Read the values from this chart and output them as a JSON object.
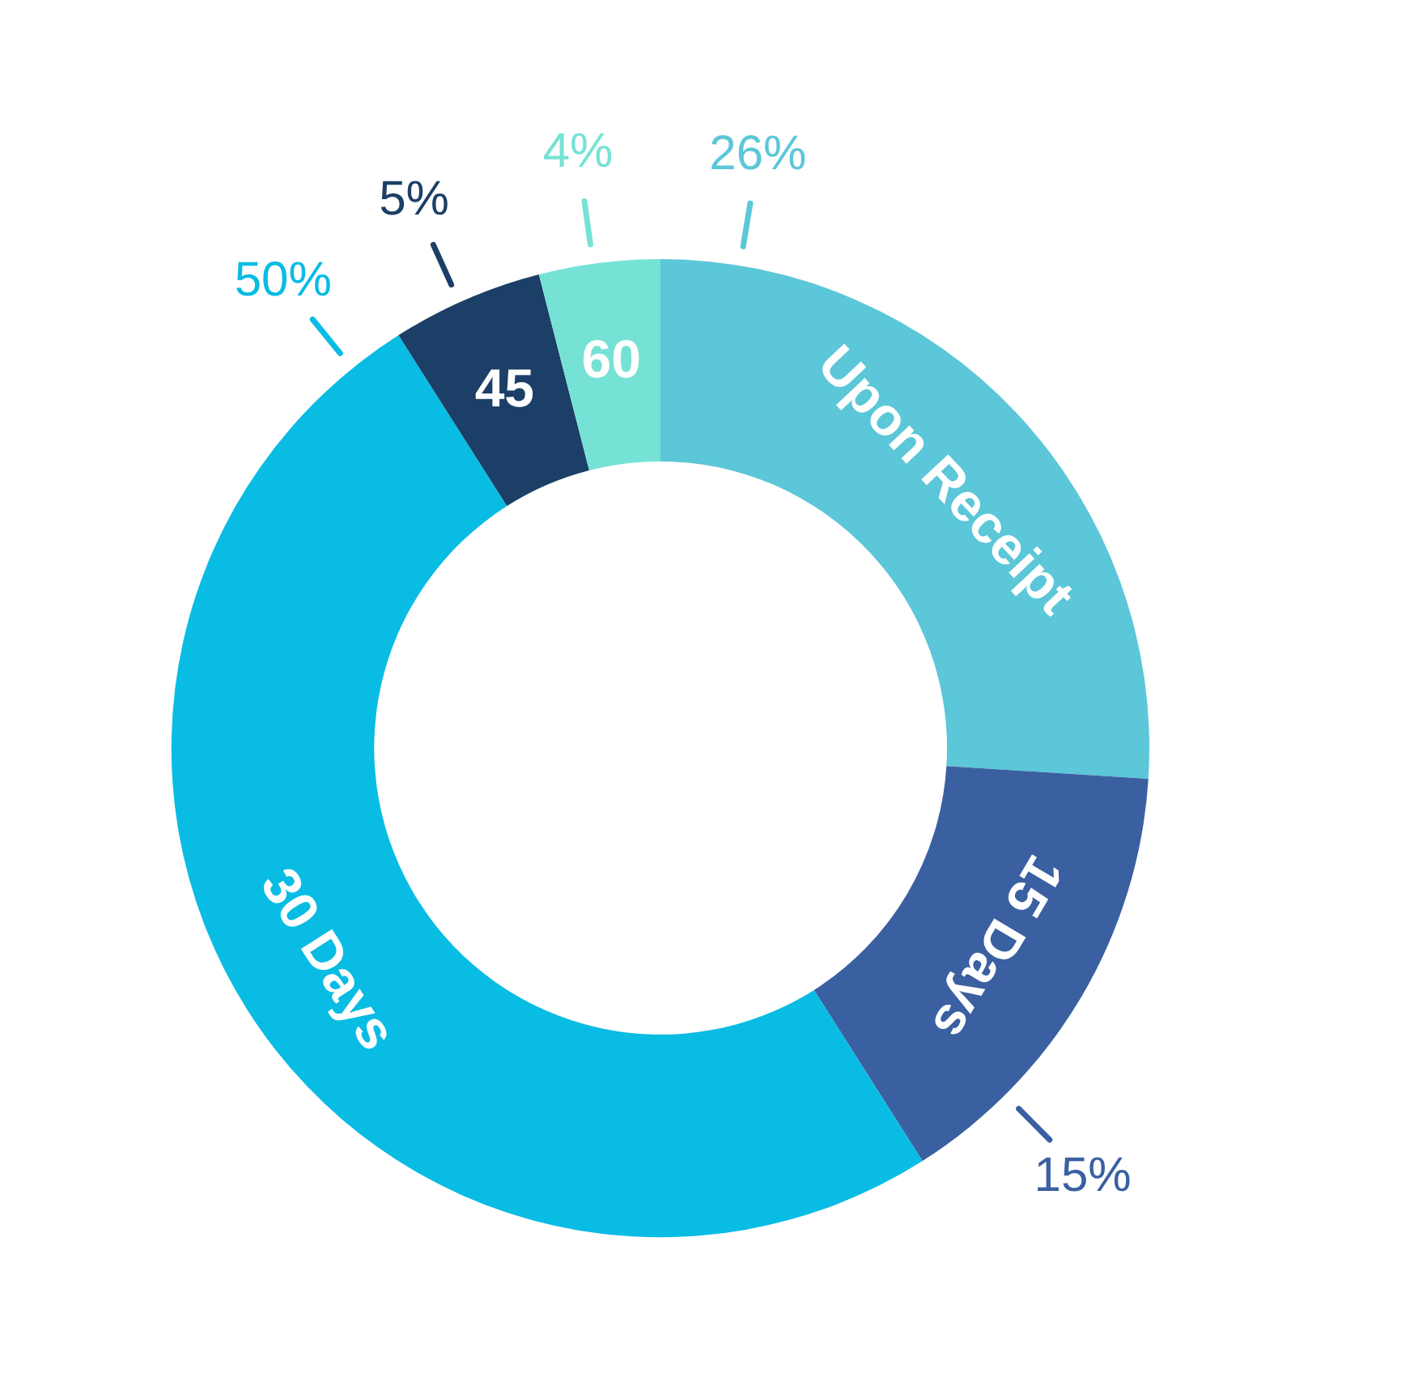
{
  "chart_data": {
    "type": "donut",
    "categories": [
      "Upon Receipt",
      "15 Days",
      "30 Days",
      "45",
      "60"
    ],
    "values": [
      26,
      15,
      50,
      5,
      4
    ],
    "colors": [
      "#5bc7d8",
      "#3a60a1",
      "#09bce4",
      "#1b3f66",
      "#76e2d5"
    ],
    "value_labels": [
      "26%",
      "15%",
      "50%",
      "5%",
      "4%"
    ]
  }
}
